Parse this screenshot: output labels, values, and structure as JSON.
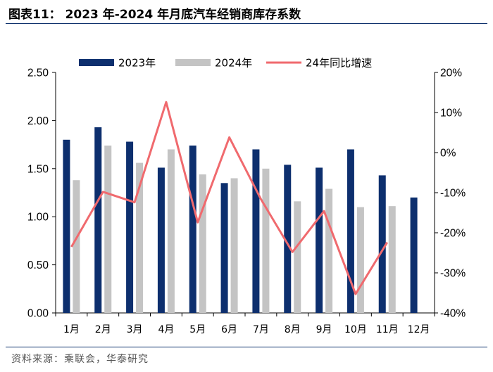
{
  "title": "图表11： 2023 年-2024 年月底汽车经销商库存系数",
  "source": "资料来源：乘联会，华泰研究",
  "chart_data": {
    "type": "bar",
    "categories": [
      "1月",
      "2月",
      "3月",
      "4月",
      "5月",
      "6月",
      "7月",
      "8月",
      "9月",
      "10月",
      "11月",
      "12月"
    ],
    "series": [
      {
        "name": "2023年",
        "type": "bar",
        "axis": "left",
        "color": "#0d2f6e",
        "values": [
          1.8,
          1.93,
          1.78,
          1.51,
          1.74,
          1.35,
          1.7,
          1.54,
          1.51,
          1.7,
          1.43,
          1.2
        ]
      },
      {
        "name": "2024年",
        "type": "bar",
        "axis": "left",
        "color": "#c4c4c4",
        "values": [
          1.38,
          1.74,
          1.56,
          1.7,
          1.44,
          1.4,
          1.5,
          1.16,
          1.29,
          1.1,
          1.11,
          null
        ]
      },
      {
        "name": "24年同比增速",
        "type": "line",
        "axis": "right",
        "color": "#f06a6e",
        "values": [
          -23.5,
          -9.8,
          -12.4,
          12.6,
          -17.4,
          3.8,
          -11.6,
          -24.8,
          -14.6,
          -35.3,
          -22.4,
          null
        ]
      }
    ],
    "y_left": {
      "min": 0,
      "max": 2.5,
      "ticks": [
        "0.00",
        "0.50",
        "1.00",
        "1.50",
        "2.00",
        "2.50"
      ]
    },
    "y_right": {
      "min": -40,
      "max": 20,
      "ticks": [
        "-40%",
        "-30%",
        "-20%",
        "-10%",
        "0%",
        "10%",
        "20%"
      ]
    },
    "legend": "top",
    "grid": false
  }
}
